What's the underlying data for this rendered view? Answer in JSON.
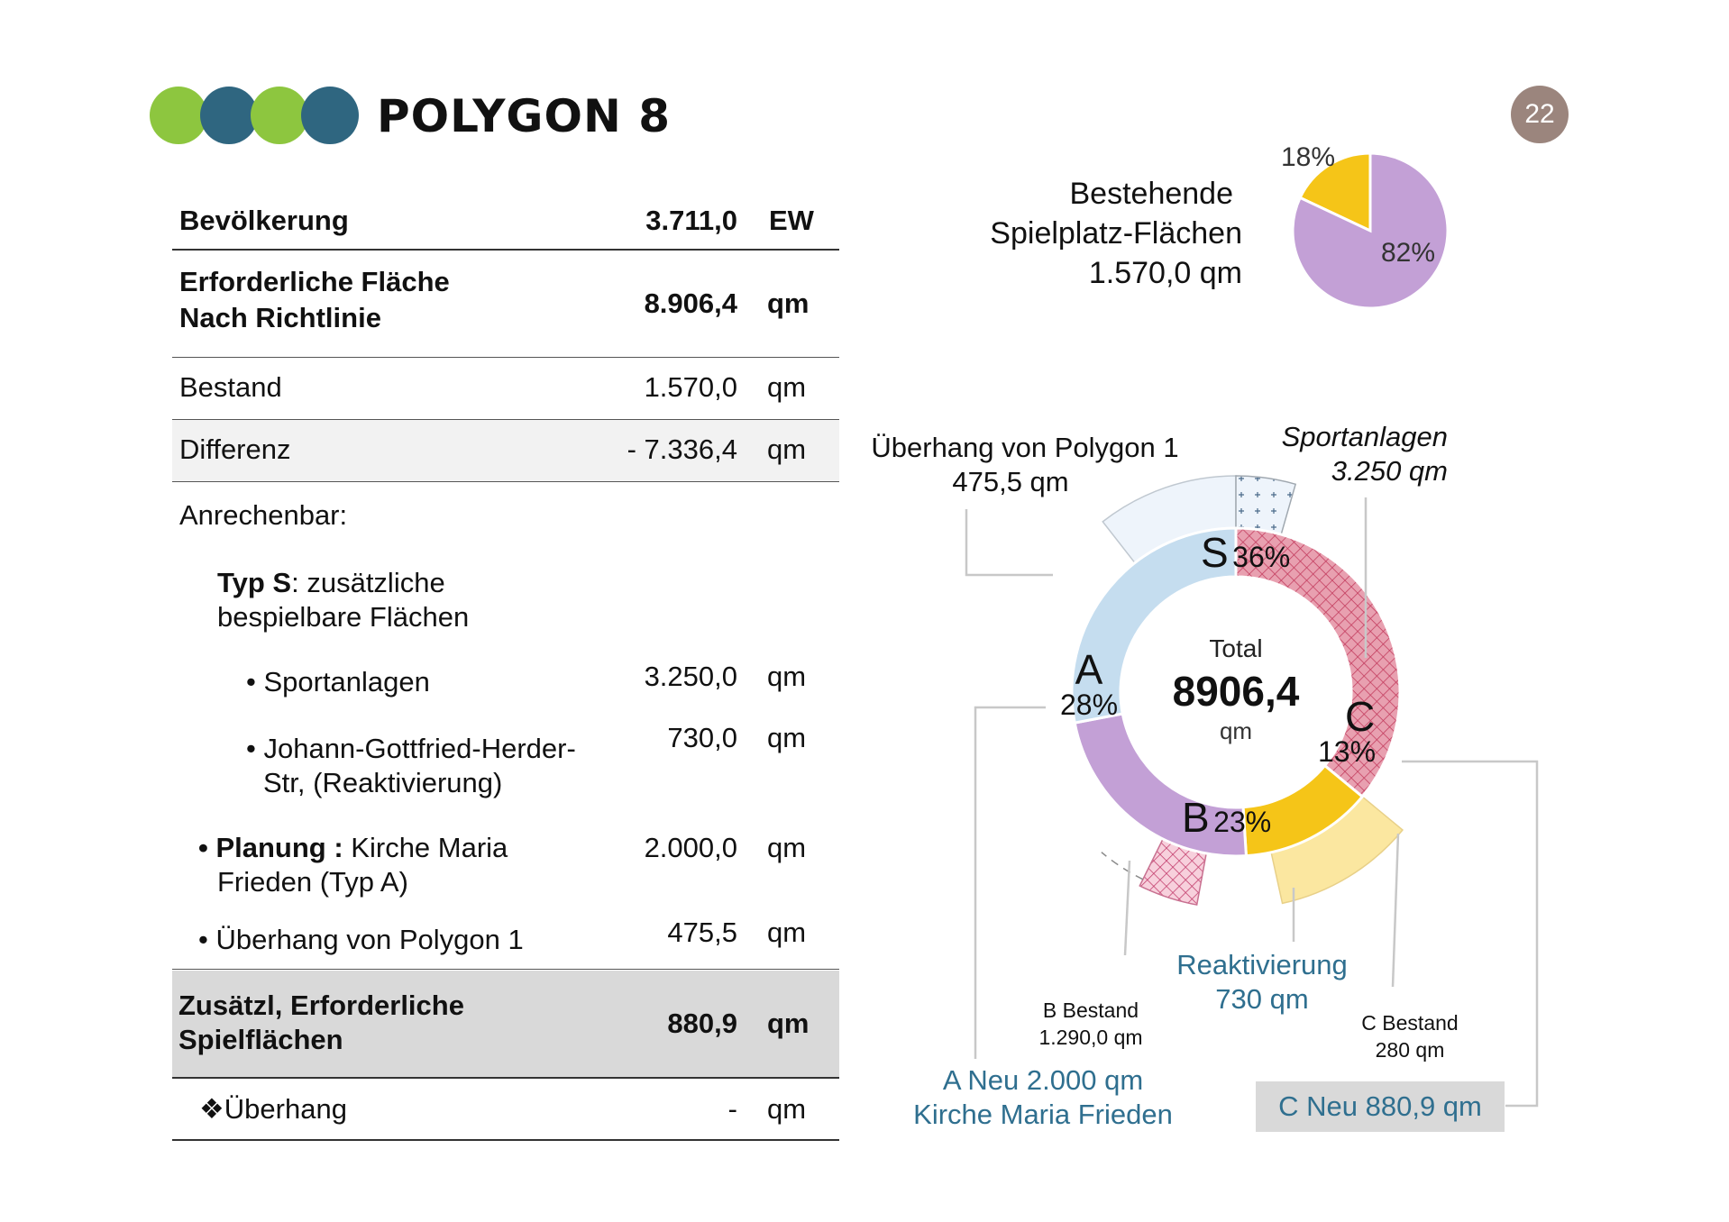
{
  "header": {
    "title": "POLYGON 8",
    "page_number": "22",
    "logo_colors": [
      "#8dc63f",
      "#2f6680",
      "#8dc63f",
      "#2f6680"
    ]
  },
  "table": {
    "rows": [
      {
        "label": "Bevölkerung",
        "value": "3.711,0",
        "unit": "EW"
      },
      {
        "label_line1": "Erforderliche Fläche",
        "label_line2": "Nach Richtlinie",
        "value": "8.906,4",
        "unit": "qm"
      },
      {
        "label": "Bestand",
        "value": "1.570,0",
        "unit": "qm"
      },
      {
        "label": "Differenz",
        "value": "- 7.336,4",
        "unit": "qm"
      },
      {
        "label": "Anrechenbar:"
      },
      {
        "label_bold": "Typ S",
        "label_rest": ": zusätzliche",
        "label_line2": "bespielbare Flächen"
      },
      {
        "label": "• Sportanlagen",
        "value": "3.250,0",
        "unit": "qm"
      },
      {
        "label_line1": "• Johann-Gottfried-Herder-",
        "label_line2": "Str, (Reaktivierung)",
        "value": "730,0",
        "unit": "qm"
      },
      {
        "label_bold": "• Planung :",
        "label_rest": " Kirche Maria",
        "label_line2": "Frieden (Typ A)",
        "value": "2.000,0",
        "unit": "qm"
      },
      {
        "label": "• Überhang von Polygon 1",
        "value": "475,5",
        "unit": "qm"
      },
      {
        "label_line1": "Zusätzl, Erforderliche",
        "label_line2": "Spielflächen",
        "value": "880,9",
        "unit": "qm"
      },
      {
        "label": "❖Überhang",
        "value": "-",
        "unit": "qm"
      }
    ]
  },
  "chart_data": [
    {
      "type": "pie",
      "title_lines": [
        "Bestehende",
        "Spielplatz-Flächen",
        "1.570,0 qm"
      ],
      "slices": [
        {
          "label": "18%",
          "value": 18,
          "color": "#f5c518"
        },
        {
          "label": "82%",
          "value": 82,
          "color": "#c3a0d6"
        }
      ]
    },
    {
      "type": "pie",
      "center": {
        "line1": "Total",
        "line2": "8906,4",
        "line3": "qm"
      },
      "inner_ring": [
        {
          "letter": "S",
          "pct_label": "36%",
          "value": 36,
          "color": "#d9677c"
        },
        {
          "letter": "C",
          "pct_label": "13%",
          "value": 13,
          "color": "#f5c518"
        },
        {
          "letter": "B",
          "pct_label": "23%",
          "value": 23,
          "color": "#c3a0d6"
        },
        {
          "letter": "A",
          "pct_label": "28%",
          "value": 28,
          "color": "#c5ddef"
        }
      ],
      "annotations": {
        "ueberhang": {
          "line1": "Überhang von Polygon 1",
          "line2": "475,5 qm"
        },
        "sport": {
          "line1": "Sportanlagen",
          "line2": "3.250 qm"
        },
        "reakt": {
          "line1": "Reaktivierung",
          "line2": "730 qm"
        },
        "b_bestand": {
          "line1": "B Bestand",
          "line2": "1.290,0 qm"
        },
        "c_bestand": {
          "line1": "C Bestand",
          "line2": "280 qm"
        },
        "a_neu": {
          "line1": "A Neu 2.000 qm",
          "line2": "Kirche Maria Frieden"
        },
        "c_neu": {
          "line1": "C Neu 880,9 qm"
        }
      }
    }
  ]
}
